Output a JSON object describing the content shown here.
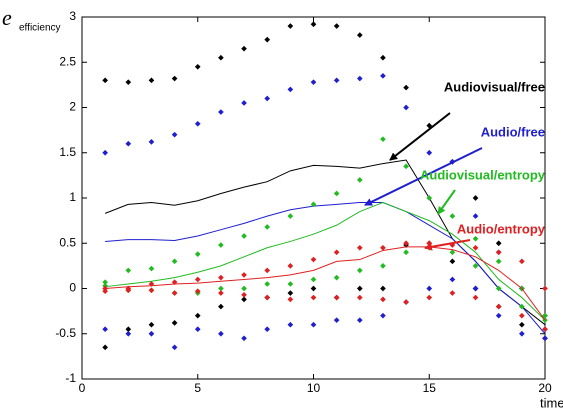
{
  "chart_data": {
    "type": "line",
    "ylabel": {
      "symbol": "e",
      "subscript": "efficiency"
    },
    "xlabel": "time",
    "x": [
      1,
      2,
      3,
      4,
      5,
      6,
      7,
      8,
      9,
      10,
      11,
      12,
      13,
      14,
      15,
      16,
      17,
      18,
      19,
      20
    ],
    "xlim": [
      0,
      20
    ],
    "xticks": [
      0,
      5,
      10,
      15,
      20
    ],
    "ylim": [
      -1,
      3
    ],
    "yticks": [
      -1,
      -0.5,
      0,
      0.5,
      1,
      1.5,
      2,
      2.5,
      3
    ],
    "series": [
      {
        "name": "Audiovisual/free",
        "color": "#000000",
        "values": [
          0.83,
          0.93,
          0.95,
          0.92,
          0.97,
          1.05,
          1.12,
          1.18,
          1.3,
          1.36,
          1.35,
          1.33,
          1.38,
          1.42,
          1.0,
          0.55,
          0.3,
          0.0,
          -0.2,
          -0.4
        ],
        "upper": [
          2.3,
          2.28,
          2.3,
          2.32,
          2.45,
          2.55,
          2.65,
          2.75,
          2.9,
          2.92,
          2.9,
          2.8,
          2.55,
          2.22,
          1.8,
          1.4,
          1.0,
          0.5,
          0.0,
          -0.3
        ],
        "lower": [
          -0.65,
          -0.45,
          -0.4,
          -0.38,
          -0.3,
          -0.2,
          -0.12,
          -0.1,
          -0.05,
          0.0,
          -0.1,
          0.0,
          0.0,
          0.48,
          0.5,
          0.3,
          0.0,
          -0.2,
          -0.4,
          -0.55
        ]
      },
      {
        "name": "Audio/free",
        "color": "#1f1fd0",
        "values": [
          0.52,
          0.54,
          0.54,
          0.53,
          0.58,
          0.65,
          0.72,
          0.8,
          0.87,
          0.91,
          0.93,
          0.95,
          0.95,
          0.85,
          0.7,
          0.55,
          0.3,
          0.0,
          -0.2,
          -0.5
        ],
        "upper": [
          1.5,
          1.6,
          1.62,
          1.7,
          1.82,
          1.95,
          2.05,
          2.1,
          2.2,
          2.28,
          2.3,
          2.32,
          2.35,
          2.0,
          1.5,
          1.4,
          0.8,
          0.4,
          0.0,
          -0.45
        ],
        "lower": [
          -0.45,
          -0.5,
          -0.5,
          -0.65,
          -0.45,
          -0.5,
          -0.55,
          -0.45,
          -0.4,
          -0.4,
          -0.35,
          -0.35,
          -0.3,
          -0.15,
          0.0,
          0.1,
          0.0,
          -0.3,
          -0.5,
          -0.55
        ]
      },
      {
        "name": "Audiovisual/entropy",
        "color": "#22bb22",
        "values": [
          0.02,
          0.05,
          0.08,
          0.12,
          0.18,
          0.25,
          0.35,
          0.45,
          0.52,
          0.6,
          0.7,
          0.85,
          0.95,
          0.85,
          0.75,
          0.6,
          0.4,
          0.1,
          -0.1,
          -0.35
        ],
        "upper": [
          0.07,
          0.2,
          0.22,
          0.3,
          0.38,
          0.48,
          0.58,
          0.68,
          0.8,
          0.93,
          1.05,
          1.2,
          1.65,
          1.35,
          1.0,
          0.8,
          0.55,
          0.3,
          0.0,
          -0.3
        ],
        "lower": [
          0.03,
          -0.02,
          -0.02,
          -0.05,
          -0.05,
          0.0,
          0.0,
          0.05,
          0.05,
          0.1,
          0.12,
          0.2,
          0.25,
          0.4,
          0.45,
          0.4,
          0.25,
          0.0,
          -0.2,
          -0.35
        ]
      },
      {
        "name": "Audio/entropy",
        "color": "#e02020",
        "values": [
          0.0,
          0.02,
          0.03,
          0.05,
          0.06,
          0.08,
          0.1,
          0.12,
          0.15,
          0.2,
          0.3,
          0.32,
          0.42,
          0.46,
          0.46,
          0.43,
          0.35,
          0.2,
          0.0,
          -0.35
        ],
        "upper": [
          0.0,
          0.0,
          0.05,
          0.07,
          0.1,
          0.12,
          0.15,
          0.2,
          0.25,
          0.32,
          0.4,
          0.45,
          0.45,
          0.5,
          0.5,
          0.48,
          0.45,
          0.4,
          0.3,
          0.0
        ],
        "lower": [
          -0.03,
          -0.02,
          -0.02,
          -0.05,
          -0.03,
          -0.05,
          -0.07,
          -0.1,
          -0.12,
          -0.1,
          -0.1,
          -0.1,
          -0.12,
          -0.15,
          -0.1,
          -0.05,
          -0.1,
          -0.2,
          -0.3,
          -0.45
        ]
      }
    ]
  }
}
